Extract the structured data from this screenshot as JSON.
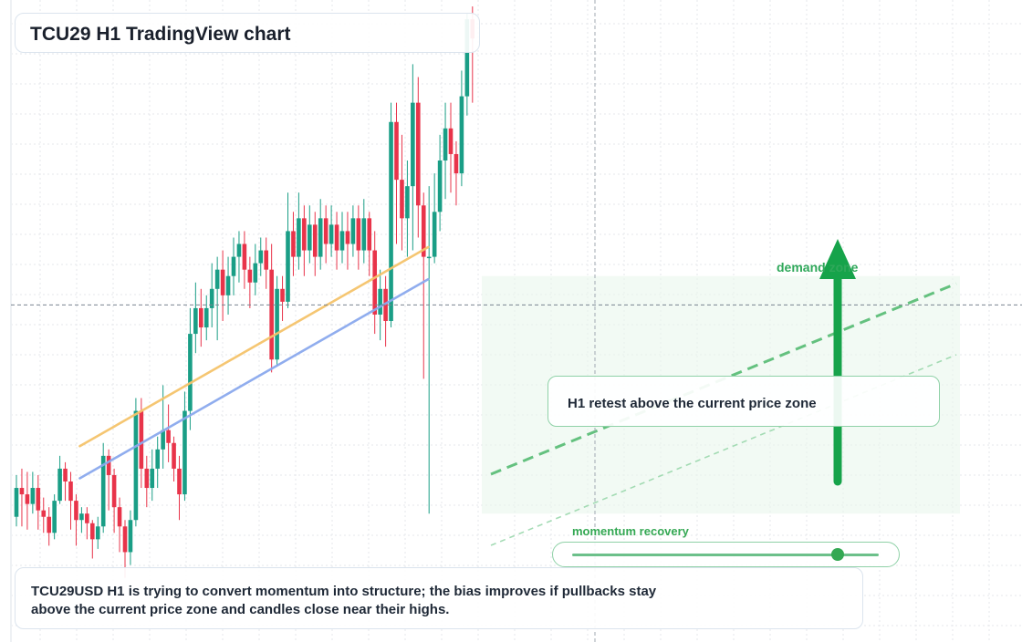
{
  "title": "TCU29 H1 TradingView chart",
  "annotations": {
    "demand_zone": "demand zone",
    "retest": "H1 retest above the current price zone",
    "momentum_label": "momentum recovery",
    "momentum_level": 0.86
  },
  "summary": "TCU29USD H1 is trying to convert momentum into structure; the bias improves if pullbacks stay above the current price zone and candles close near their highs.",
  "colors": {
    "up": "#1a9e86",
    "down": "#e8344a",
    "ema_fast": "#f5c36b",
    "ema_slow": "#8ba9ee",
    "zone_line": "#4cb86b",
    "arrow": "#16a34a"
  },
  "chart_data": {
    "type": "candlestick",
    "symbol": "TCU29USD",
    "timeframe": "H1",
    "y_range": [
      0,
      100
    ],
    "grid": true,
    "current_price": 52.5,
    "series": [
      {
        "type": "line",
        "color": "#f5c36b",
        "points": [
          [
            11,
            30.5
          ],
          [
            76,
            61.5
          ]
        ]
      },
      {
        "type": "line",
        "color": "#8ba9ee",
        "points": [
          [
            11,
            25.5
          ],
          [
            76,
            56.5
          ]
        ]
      }
    ],
    "trend_channel": {
      "upper": [
        [
          38,
          26.5
        ],
        [
          75,
          56
        ]
      ],
      "lower": [
        [
          38,
          14.5
        ],
        [
          75,
          44.5
        ]
      ]
    },
    "demand_zone_range": [
      20,
      57
    ],
    "candles": [
      [
        19.5,
        24,
        26,
        18
      ],
      [
        24,
        23,
        27,
        18
      ],
      [
        23,
        21.5,
        26.5,
        17.5
      ],
      [
        21.5,
        24,
        26.5,
        20
      ],
      [
        24,
        20.5,
        26,
        17.5
      ],
      [
        20.5,
        19.5,
        22.5,
        17
      ],
      [
        19.5,
        17,
        21,
        15
      ],
      [
        17,
        22,
        23,
        16
      ],
      [
        22,
        27,
        29,
        21.5
      ],
      [
        27,
        25,
        28,
        22
      ],
      [
        25,
        22,
        26.5,
        17.5
      ],
      [
        22,
        19,
        23,
        15
      ],
      [
        19,
        20,
        21,
        17
      ],
      [
        20,
        18.5,
        21,
        16
      ],
      [
        18.5,
        16,
        19,
        13
      ],
      [
        16,
        18,
        19.5,
        14.5
      ],
      [
        18,
        29,
        31,
        17
      ],
      [
        29,
        26,
        30,
        20.5
      ],
      [
        26,
        21,
        27,
        17
      ],
      [
        21,
        18,
        22.5,
        14
      ],
      [
        18,
        14,
        19,
        10
      ],
      [
        14,
        19,
        20.5,
        12
      ],
      [
        19,
        36,
        38,
        18
      ],
      [
        36,
        27,
        38,
        24
      ],
      [
        27,
        24,
        29,
        21
      ],
      [
        24,
        27,
        30,
        22
      ],
      [
        27,
        30,
        32,
        24
      ],
      [
        30,
        33,
        40,
        27
      ],
      [
        33,
        31,
        37,
        28
      ],
      [
        31,
        27,
        32,
        25
      ],
      [
        27,
        23,
        29,
        19
      ],
      [
        23,
        36,
        39,
        22
      ],
      [
        36,
        48,
        52,
        33
      ],
      [
        48,
        52,
        56,
        45
      ],
      [
        52,
        49,
        55,
        46
      ],
      [
        49,
        52,
        54,
        47
      ],
      [
        52,
        55,
        59,
        49
      ],
      [
        55,
        58,
        60,
        47
      ],
      [
        58,
        54,
        61,
        50
      ],
      [
        54,
        57,
        60,
        51
      ],
      [
        57,
        60,
        63,
        54
      ],
      [
        60,
        62,
        64,
        56
      ],
      [
        62,
        58,
        64,
        55
      ],
      [
        58,
        56,
        60,
        52
      ],
      [
        56,
        59,
        62,
        54
      ],
      [
        59,
        61,
        63,
        57
      ],
      [
        61,
        58,
        63,
        55
      ],
      [
        58,
        44,
        62,
        42
      ],
      [
        44,
        55,
        57,
        43
      ],
      [
        55,
        53,
        57,
        50
      ],
      [
        53,
        64,
        70,
        52
      ],
      [
        64,
        60,
        67,
        57
      ],
      [
        60,
        66,
        70,
        58
      ],
      [
        66,
        61,
        68,
        57
      ],
      [
        61,
        65,
        68,
        59
      ],
      [
        65,
        60,
        67,
        57
      ],
      [
        60,
        66,
        69,
        58
      ],
      [
        66,
        62,
        68,
        59
      ],
      [
        62,
        65,
        68,
        60
      ],
      [
        65,
        61,
        67,
        58
      ],
      [
        61,
        64,
        67,
        59
      ],
      [
        64,
        62,
        67,
        58
      ],
      [
        62,
        66,
        68,
        60
      ],
      [
        66,
        61,
        68,
        58
      ],
      [
        61,
        66,
        69,
        59
      ],
      [
        66,
        61,
        67,
        57
      ],
      [
        61,
        51,
        64,
        48
      ],
      [
        51,
        55,
        58,
        47
      ],
      [
        55,
        50,
        57,
        46
      ],
      [
        50,
        81,
        84,
        49
      ],
      [
        81,
        72,
        84,
        62
      ],
      [
        72,
        66,
        79,
        61
      ],
      [
        66,
        71,
        75,
        60
      ],
      [
        71,
        84,
        90,
        61
      ],
      [
        84,
        68,
        88,
        63
      ],
      [
        68,
        60,
        70,
        41
      ],
      [
        60,
        60,
        71,
        20
      ],
      [
        60,
        67,
        73,
        59
      ],
      [
        67,
        75,
        79,
        64
      ],
      [
        75,
        80,
        84,
        69
      ],
      [
        80,
        76,
        84,
        70
      ],
      [
        76,
        73,
        78,
        68
      ],
      [
        73,
        85,
        89,
        71
      ],
      [
        85,
        97,
        98,
        82
      ],
      [
        97,
        94,
        99,
        84
      ]
    ]
  }
}
